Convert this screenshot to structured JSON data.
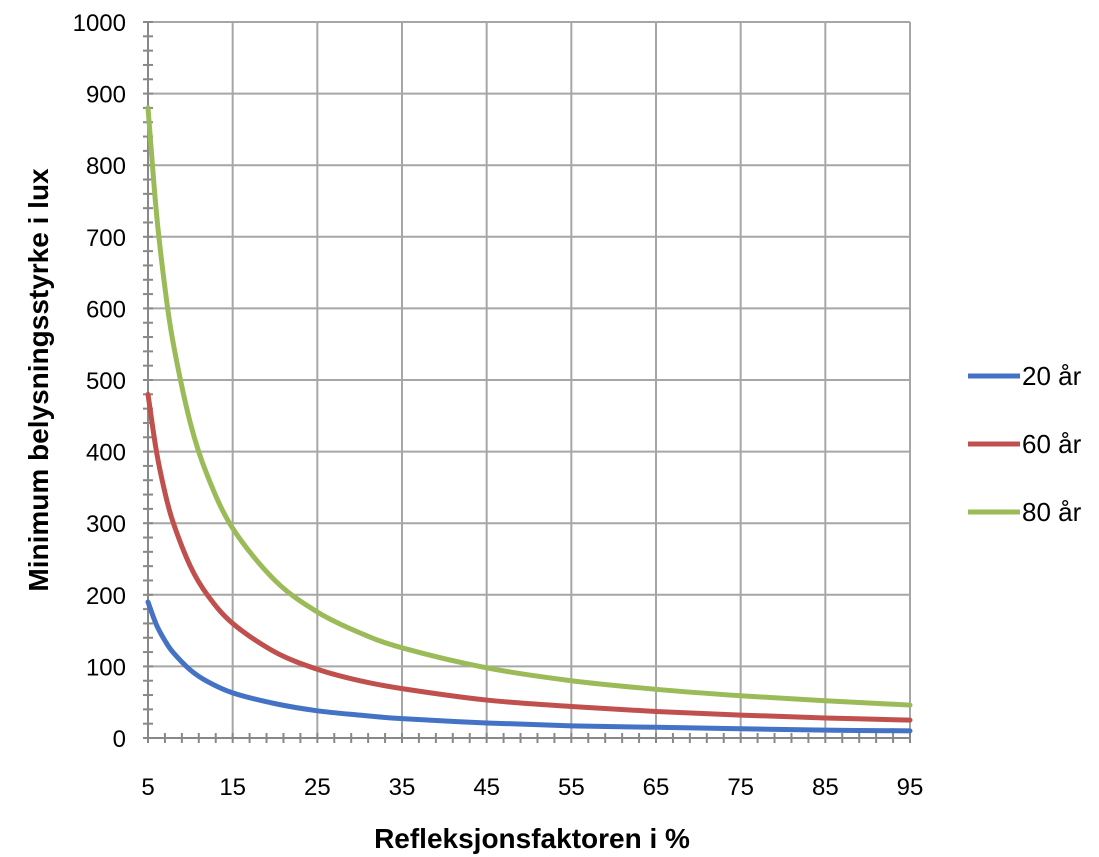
{
  "chart_data": {
    "type": "line",
    "title": "",
    "xlabel": "Refleksjonsfaktoren i %",
    "ylabel": "Minimum belysningsstyrke i lux",
    "xlim": [
      5,
      95
    ],
    "ylim": [
      0,
      1000
    ],
    "x_ticks": [
      5,
      15,
      25,
      35,
      45,
      55,
      65,
      75,
      85,
      95
    ],
    "y_ticks": [
      0,
      100,
      200,
      300,
      400,
      500,
      600,
      700,
      800,
      900,
      1000
    ],
    "grid": true,
    "legend_position": "right",
    "x": [
      5,
      6,
      7,
      8,
      10,
      12,
      15,
      20,
      25,
      30,
      35,
      45,
      55,
      65,
      75,
      85,
      95
    ],
    "series": [
      {
        "name": "20 år",
        "color": "#4472C4",
        "values": [
          190,
          158,
          136,
          119,
          95,
          79,
          63,
          48,
          38,
          32,
          27,
          21,
          17,
          15,
          13,
          11,
          10
        ]
      },
      {
        "name": "60 år",
        "color": "#C0504D",
        "values": [
          480,
          400,
          343,
          300,
          240,
          200,
          160,
          120,
          96,
          80,
          69,
          53,
          44,
          37,
          32,
          28,
          25
        ]
      },
      {
        "name": "80 år",
        "color": "#9BBB59",
        "values": [
          880,
          733,
          629,
          550,
          440,
          367,
          293,
          220,
          176,
          147,
          126,
          98,
          80,
          68,
          59,
          52,
          46
        ]
      }
    ]
  }
}
